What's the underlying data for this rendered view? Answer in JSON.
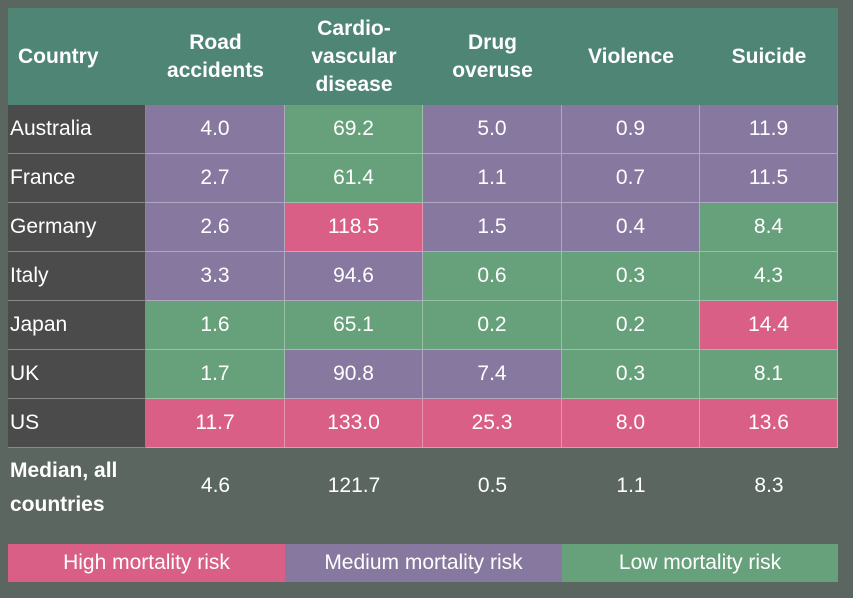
{
  "colors": {
    "high": "#d95f86",
    "medium": "#86789e",
    "low": "#66a17b",
    "header": "#4f8575",
    "country_cell": "#4b4b4b",
    "background": "#5b6660"
  },
  "chart_data": {
    "type": "table",
    "columns": [
      "Country",
      "Road\naccidents",
      "Cardio-\nvascular\ndisease",
      "Drug\noveruse",
      "Violence",
      "Suicide"
    ],
    "rows": [
      {
        "country": "Australia",
        "values": [
          "4.0",
          "69.2",
          "5.0",
          "0.9",
          "11.9"
        ],
        "risk": [
          "medium",
          "low",
          "medium",
          "medium",
          "medium"
        ]
      },
      {
        "country": "France",
        "values": [
          "2.7",
          "61.4",
          "1.1",
          "0.7",
          "11.5"
        ],
        "risk": [
          "medium",
          "low",
          "medium",
          "medium",
          "medium"
        ]
      },
      {
        "country": "Germany",
        "values": [
          "2.6",
          "118.5",
          "1.5",
          "0.4",
          "8.4"
        ],
        "risk": [
          "medium",
          "high",
          "medium",
          "medium",
          "low"
        ]
      },
      {
        "country": "Italy",
        "values": [
          "3.3",
          "94.6",
          "0.6",
          "0.3",
          "4.3"
        ],
        "risk": [
          "medium",
          "medium",
          "low",
          "low",
          "low"
        ]
      },
      {
        "country": "Japan",
        "values": [
          "1.6",
          "65.1",
          "0.2",
          "0.2",
          "14.4"
        ],
        "risk": [
          "low",
          "low",
          "low",
          "low",
          "high"
        ]
      },
      {
        "country": "UK",
        "values": [
          "1.7",
          "90.8",
          "7.4",
          "0.3",
          "8.1"
        ],
        "risk": [
          "low",
          "medium",
          "medium",
          "low",
          "low"
        ]
      },
      {
        "country": "US",
        "values": [
          "11.7",
          "133.0",
          "25.3",
          "8.0",
          "13.6"
        ],
        "risk": [
          "high",
          "high",
          "high",
          "high",
          "high"
        ]
      }
    ],
    "median": {
      "label": "Median, all\ncountries",
      "values": [
        "4.6",
        "121.7",
        "0.5",
        "1.1",
        "8.3"
      ]
    },
    "legend": [
      {
        "key": "high",
        "label": "High mortality risk"
      },
      {
        "key": "medium",
        "label": "Medium mortality risk"
      },
      {
        "key": "low",
        "label": "Low mortality risk"
      }
    ]
  }
}
